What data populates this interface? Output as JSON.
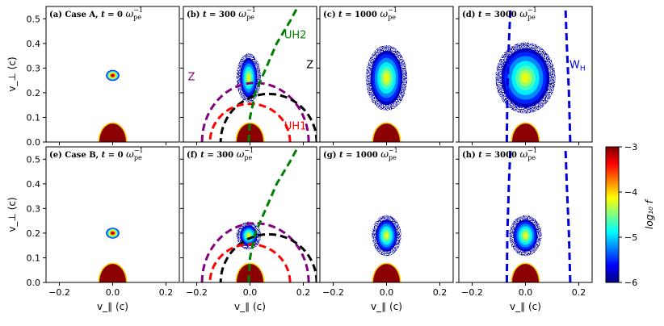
{
  "chart_data": {
    "type": "heatmap",
    "quantity": "log_{10} f",
    "xlabel": "v_∥ (c)",
    "ylabel": "v_⊥ (c)",
    "xlim": [
      -0.25,
      0.25
    ],
    "ylim": [
      0,
      0.55
    ],
    "xticks": [
      -0.2,
      0.0,
      0.2
    ],
    "xtick_labels": [
      "−0.2",
      "0.0",
      "0.2"
    ],
    "yticks": [
      0.0,
      0.1,
      0.2,
      0.3,
      0.4,
      0.5
    ],
    "ytick_labels": [
      "0.0",
      "0.1",
      "0.2",
      "0.3",
      "0.4",
      "0.5"
    ],
    "colorbar": {
      "label": "log₁₀ f",
      "range": [
        -6,
        -3
      ],
      "ticks": [
        -6,
        -5,
        -4,
        -3
      ],
      "tick_labels": [
        "−6",
        "−5",
        "−4",
        "−3"
      ],
      "colormap": "jet"
    },
    "panels": [
      {
        "label": "(a) Case A, t = 0 ω⁻¹pe",
        "label_parts": [
          "(a) Case A, ",
          "t",
          " = 0 ",
          "ω",
          "pe",
          "−1"
        ],
        "beam": {
          "center": [
            0.0,
            0.27
          ],
          "sigma": [
            0.025,
            0.022
          ],
          "scatter": 0.0
        },
        "core": true,
        "curves": []
      },
      {
        "label": "(b) t = 300 ω⁻¹pe",
        "label_parts": [
          "(b) ",
          "t",
          " = 300 ",
          "ω",
          "pe",
          "−1"
        ],
        "beam": {
          "center": [
            -0.005,
            0.26
          ],
          "sigma": [
            0.032,
            0.08
          ],
          "scatter": 0.08
        },
        "core": true,
        "curves": [
          {
            "name": "Z (purple)",
            "kind": "ellipse",
            "cx": 0.02,
            "cy": 0.0,
            "rx": 0.2,
            "ry": 0.24,
            "color": "#800080"
          },
          {
            "name": "Z (black)",
            "kind": "ellipse",
            "cx": 0.07,
            "cy": 0.0,
            "rx": 0.18,
            "ry": 0.195,
            "color": "#000000"
          },
          {
            "name": "UH1",
            "kind": "ellipse",
            "cx": 0.0,
            "cy": 0.0,
            "rx": 0.15,
            "ry": 0.155,
            "color": "#ff0000"
          },
          {
            "name": "UH2",
            "kind": "polyline",
            "points": [
              [
                -0.005,
                0.0
              ],
              [
                0.0,
                0.1
              ],
              [
                0.02,
                0.2
              ],
              [
                0.06,
                0.3
              ],
              [
                0.1,
                0.4
              ],
              [
                0.15,
                0.49
              ],
              [
                0.18,
                0.55
              ]
            ],
            "color": "#008000"
          }
        ],
        "curve_labels": [
          {
            "text": "UH2",
            "x": 0.17,
            "y": 0.42,
            "color": "#008000"
          },
          {
            "text": "Z",
            "x": -0.22,
            "y": 0.25,
            "color": "#800080"
          },
          {
            "text": "Z",
            "x": 0.225,
            "y": 0.3,
            "color": "#000000"
          },
          {
            "text": "UH1",
            "x": 0.17,
            "y": 0.05,
            "color": "#ff0000"
          }
        ]
      },
      {
        "label": "(c) t = 1000 ω⁻¹pe",
        "label_parts": [
          "(c) ",
          "t",
          " = 1000 ",
          "ω",
          "pe",
          "−1"
        ],
        "beam": {
          "center": [
            0.0,
            0.26
          ],
          "sigma": [
            0.06,
            0.11
          ],
          "scatter": 0.12
        },
        "core": true,
        "curves": []
      },
      {
        "label": "(d) t = 3000 ω⁻¹pe",
        "label_parts": [
          "(d) ",
          "t",
          " = 3000 ",
          "ω",
          "pe",
          "−1"
        ],
        "beam": {
          "center": [
            0.0,
            0.26
          ],
          "sigma": [
            0.09,
            0.12
          ],
          "scatter": 0.12
        },
        "core": true,
        "curves": [
          {
            "name": "W_H left",
            "kind": "polyline",
            "points": [
              [
                -0.07,
                0.0
              ],
              [
                -0.068,
                0.2
              ],
              [
                -0.062,
                0.4
              ],
              [
                -0.056,
                0.55
              ]
            ],
            "color": "#0000dd"
          },
          {
            "name": "W_H right",
            "kind": "polyline",
            "points": [
              [
                0.168,
                0.0
              ],
              [
                0.163,
                0.2
              ],
              [
                0.155,
                0.4
              ],
              [
                0.15,
                0.55
              ]
            ],
            "color": "#0000dd"
          }
        ],
        "curve_labels": [
          {
            "text": "W",
            "sub": "H",
            "x": 0.195,
            "y": 0.3,
            "color": "#0000dd"
          }
        ]
      },
      {
        "label": "(e) Case B, t = 0 ω⁻¹pe",
        "label_parts": [
          "(e) Case B, ",
          "t",
          " = 0 ",
          "ω",
          "pe",
          "−1"
        ],
        "beam": {
          "center": [
            0.0,
            0.2
          ],
          "sigma": [
            0.025,
            0.022
          ],
          "scatter": 0.0
        },
        "core": true,
        "curves": []
      },
      {
        "label": "(f) t = 300 ω⁻¹pe",
        "label_parts": [
          "(f) ",
          "t",
          " = 300 ",
          "ω",
          "pe",
          "−1"
        ],
        "beam": {
          "center": [
            -0.005,
            0.19
          ],
          "sigma": [
            0.032,
            0.042
          ],
          "scatter": 0.05
        },
        "core": true,
        "curves": [
          {
            "name": "Z (purple)",
            "kind": "ellipse",
            "cx": 0.02,
            "cy": 0.0,
            "rx": 0.2,
            "ry": 0.24,
            "color": "#800080"
          },
          {
            "name": "Z (black)",
            "kind": "ellipse",
            "cx": 0.07,
            "cy": 0.0,
            "rx": 0.18,
            "ry": 0.195,
            "color": "#000000"
          },
          {
            "name": "UH1",
            "kind": "ellipse",
            "cx": 0.0,
            "cy": 0.0,
            "rx": 0.15,
            "ry": 0.155,
            "color": "#ff0000"
          },
          {
            "name": "UH2",
            "kind": "polyline",
            "points": [
              [
                -0.005,
                0.0
              ],
              [
                0.0,
                0.1
              ],
              [
                0.02,
                0.2
              ],
              [
                0.06,
                0.3
              ],
              [
                0.1,
                0.4
              ],
              [
                0.15,
                0.49
              ],
              [
                0.18,
                0.55
              ]
            ],
            "color": "#008000"
          }
        ]
      },
      {
        "label": "(g) t = 1000 ω⁻¹pe",
        "label_parts": [
          "(g) ",
          "t",
          " = 1000 ",
          "ω",
          "pe",
          "−1"
        ],
        "beam": {
          "center": [
            0.0,
            0.19
          ],
          "sigma": [
            0.04,
            0.065
          ],
          "scatter": 0.08
        },
        "core": true,
        "curves": []
      },
      {
        "label": "(h) t = 3000 ω⁻¹pe",
        "label_parts": [
          "(h) ",
          "t",
          " = 3000 ",
          "ω",
          "pe",
          "−1"
        ],
        "beam": {
          "center": [
            0.0,
            0.19
          ],
          "sigma": [
            0.045,
            0.065
          ],
          "scatter": 0.08
        },
        "core": true,
        "curves": [
          {
            "name": "W_H left",
            "kind": "polyline",
            "points": [
              [
                -0.07,
                0.0
              ],
              [
                -0.068,
                0.2
              ],
              [
                -0.062,
                0.4
              ],
              [
                -0.056,
                0.55
              ]
            ],
            "color": "#0000dd"
          },
          {
            "name": "W_H right",
            "kind": "polyline",
            "points": [
              [
                0.168,
                0.0
              ],
              [
                0.163,
                0.2
              ],
              [
                0.155,
                0.4
              ],
              [
                0.15,
                0.55
              ]
            ],
            "color": "#0000dd"
          }
        ]
      }
    ]
  }
}
